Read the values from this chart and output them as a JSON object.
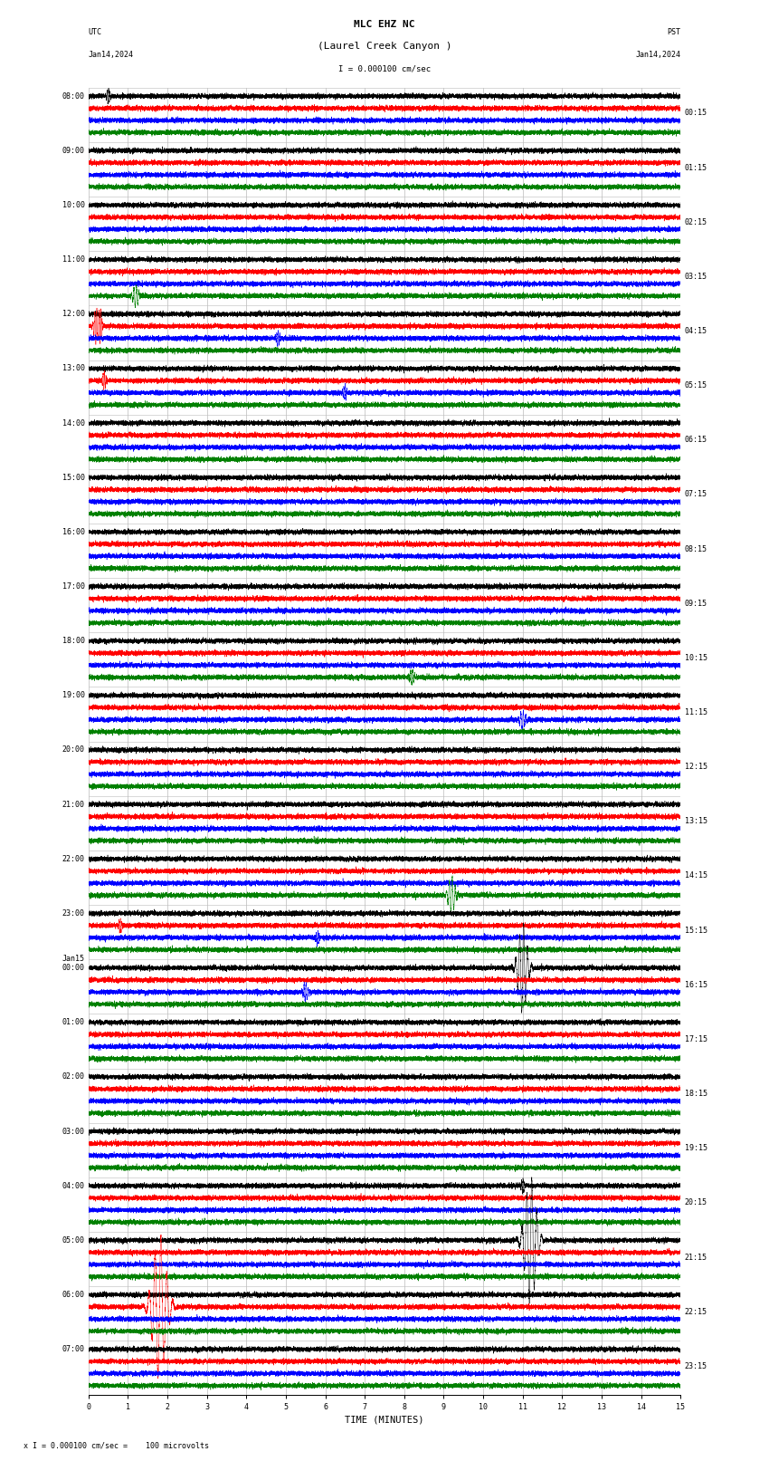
{
  "title_line1": "MLC EHZ NC",
  "title_line2": "(Laurel Creek Canyon )",
  "scale_label": "I = 0.000100 cm/sec",
  "utc_label": "UTC",
  "utc_date": "Jan14,2024",
  "pst_label": "PST",
  "pst_date": "Jan14,2024",
  "xlabel": "TIME (MINUTES)",
  "bottom_label": "x I = 0.000100 cm/sec =    100 microvolts",
  "left_times": [
    "08:00",
    "09:00",
    "10:00",
    "11:00",
    "12:00",
    "13:00",
    "14:00",
    "15:00",
    "16:00",
    "17:00",
    "18:00",
    "19:00",
    "20:00",
    "21:00",
    "22:00",
    "23:00",
    "Jan15\n00:00",
    "01:00",
    "02:00",
    "03:00",
    "04:00",
    "05:00",
    "06:00",
    "07:00"
  ],
  "right_times": [
    "00:15",
    "01:15",
    "02:15",
    "03:15",
    "04:15",
    "05:15",
    "06:15",
    "07:15",
    "08:15",
    "09:15",
    "10:15",
    "11:15",
    "12:15",
    "13:15",
    "14:15",
    "15:15",
    "16:15",
    "17:15",
    "18:15",
    "19:15",
    "20:15",
    "21:15",
    "22:15",
    "23:15"
  ],
  "n_rows": 24,
  "traces_per_row": 4,
  "minutes_per_row": 15,
  "colors": [
    "black",
    "red",
    "blue",
    "green"
  ],
  "background": "white",
  "grid_color": "#bbbbbb",
  "fig_width": 8.5,
  "fig_height": 16.13,
  "title_fontsize": 8,
  "label_fontsize": 7,
  "tick_fontsize": 6,
  "noise_amplitude": 0.3,
  "sample_rate": 25,
  "events": [
    [
      0,
      0,
      0.5,
      4.0,
      0.3
    ],
    [
      3,
      3,
      1.2,
      6.0,
      0.5
    ],
    [
      4,
      1,
      0.2,
      10.0,
      0.4
    ],
    [
      4,
      1,
      0.3,
      8.0,
      0.3
    ],
    [
      4,
      2,
      4.8,
      4.0,
      0.3
    ],
    [
      5,
      1,
      0.4,
      5.0,
      0.3
    ],
    [
      5,
      2,
      6.5,
      4.0,
      0.3
    ],
    [
      10,
      3,
      8.2,
      4.0,
      0.4
    ],
    [
      11,
      2,
      11.0,
      5.0,
      0.5
    ],
    [
      14,
      3,
      9.2,
      10.0,
      0.6
    ],
    [
      15,
      1,
      0.8,
      4.0,
      0.3
    ],
    [
      15,
      2,
      5.8,
      4.0,
      0.3
    ],
    [
      16,
      2,
      5.5,
      5.0,
      0.4
    ],
    [
      16,
      0,
      11.0,
      25.0,
      0.8
    ],
    [
      20,
      0,
      11.0,
      4.0,
      0.3
    ],
    [
      21,
      0,
      11.2,
      35.0,
      1.0
    ],
    [
      22,
      1,
      1.8,
      40.0,
      1.2
    ]
  ]
}
